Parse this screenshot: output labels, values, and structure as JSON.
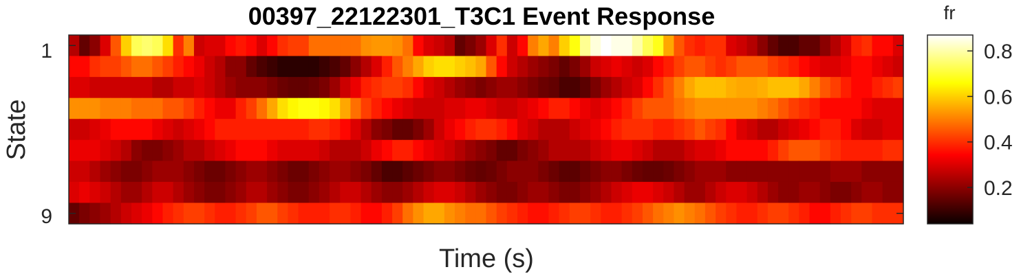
{
  "chart_data": {
    "type": "heatmap",
    "title": "00397_22122301_T3C1 Event Response",
    "xlabel": "Time (s)",
    "ylabel": "State",
    "y_tick_labels": [
      "1",
      "9"
    ],
    "colorbar": {
      "title": "fr",
      "colormap": "hot",
      "clim": [
        0.04,
        0.87
      ],
      "ticks": [
        0.2,
        0.4,
        0.6,
        0.8
      ],
      "tick_labels": [
        "0.2",
        "0.4",
        "0.6",
        "0.8"
      ]
    },
    "rows": 9,
    "cols": 80,
    "values": [
      [
        0.25,
        0.15,
        0.2,
        0.3,
        0.45,
        0.6,
        0.73,
        0.75,
        0.73,
        0.62,
        0.4,
        0.5,
        0.28,
        0.3,
        0.3,
        0.35,
        0.37,
        0.35,
        0.3,
        0.35,
        0.4,
        0.42,
        0.42,
        0.48,
        0.48,
        0.48,
        0.48,
        0.48,
        0.52,
        0.53,
        0.53,
        0.52,
        0.48,
        0.35,
        0.3,
        0.28,
        0.25,
        0.15,
        0.18,
        0.22,
        0.3,
        0.4,
        0.28,
        0.35,
        0.5,
        0.55,
        0.5,
        0.6,
        0.67,
        0.78,
        0.84,
        0.87,
        0.85,
        0.85,
        0.8,
        0.73,
        0.68,
        0.55,
        0.45,
        0.4,
        0.38,
        0.4,
        0.4,
        0.3,
        0.28,
        0.25,
        0.2,
        0.15,
        0.12,
        0.12,
        0.15,
        0.15,
        0.2,
        0.25,
        0.3,
        0.38,
        0.4,
        0.35,
        0.35,
        0.3
      ],
      [
        0.35,
        0.35,
        0.4,
        0.42,
        0.42,
        0.45,
        0.48,
        0.48,
        0.45,
        0.42,
        0.38,
        0.35,
        0.32,
        0.28,
        0.25,
        0.2,
        0.2,
        0.15,
        0.12,
        0.1,
        0.08,
        0.08,
        0.08,
        0.08,
        0.1,
        0.12,
        0.15,
        0.2,
        0.25,
        0.3,
        0.38,
        0.45,
        0.5,
        0.55,
        0.6,
        0.62,
        0.62,
        0.6,
        0.58,
        0.55,
        0.45,
        0.35,
        0.28,
        0.25,
        0.22,
        0.2,
        0.18,
        0.15,
        0.18,
        0.22,
        0.28,
        0.3,
        0.32,
        0.3,
        0.28,
        0.3,
        0.35,
        0.38,
        0.42,
        0.45,
        0.45,
        0.42,
        0.4,
        0.42,
        0.45,
        0.45,
        0.45,
        0.42,
        0.4,
        0.38,
        0.35,
        0.32,
        0.3,
        0.3,
        0.32,
        0.35,
        0.35,
        0.32,
        0.3,
        0.28
      ],
      [
        0.3,
        0.3,
        0.28,
        0.28,
        0.28,
        0.28,
        0.28,
        0.28,
        0.25,
        0.25,
        0.28,
        0.28,
        0.3,
        0.28,
        0.25,
        0.22,
        0.2,
        0.2,
        0.2,
        0.18,
        0.16,
        0.15,
        0.15,
        0.16,
        0.18,
        0.22,
        0.28,
        0.32,
        0.38,
        0.4,
        0.42,
        0.42,
        0.4,
        0.35,
        0.3,
        0.28,
        0.25,
        0.22,
        0.2,
        0.18,
        0.2,
        0.22,
        0.22,
        0.2,
        0.18,
        0.16,
        0.15,
        0.12,
        0.12,
        0.14,
        0.18,
        0.22,
        0.25,
        0.28,
        0.3,
        0.35,
        0.4,
        0.45,
        0.5,
        0.55,
        0.58,
        0.58,
        0.58,
        0.56,
        0.55,
        0.55,
        0.56,
        0.58,
        0.58,
        0.58,
        0.55,
        0.5,
        0.45,
        0.42,
        0.38,
        0.35,
        0.35,
        0.38,
        0.4,
        0.42
      ],
      [
        0.52,
        0.52,
        0.52,
        0.5,
        0.5,
        0.5,
        0.48,
        0.48,
        0.48,
        0.45,
        0.45,
        0.42,
        0.38,
        0.35,
        0.32,
        0.32,
        0.38,
        0.42,
        0.48,
        0.55,
        0.62,
        0.65,
        0.67,
        0.67,
        0.65,
        0.62,
        0.55,
        0.48,
        0.42,
        0.38,
        0.35,
        0.32,
        0.3,
        0.28,
        0.28,
        0.28,
        0.3,
        0.3,
        0.32,
        0.32,
        0.3,
        0.28,
        0.28,
        0.3,
        0.32,
        0.35,
        0.38,
        0.38,
        0.35,
        0.32,
        0.3,
        0.32,
        0.35,
        0.38,
        0.42,
        0.45,
        0.45,
        0.45,
        0.48,
        0.5,
        0.52,
        0.52,
        0.52,
        0.52,
        0.52,
        0.52,
        0.5,
        0.48,
        0.45,
        0.42,
        0.4,
        0.38,
        0.35,
        0.35,
        0.35,
        0.35,
        0.32,
        0.3,
        0.3,
        0.3
      ],
      [
        0.28,
        0.28,
        0.3,
        0.32,
        0.35,
        0.35,
        0.35,
        0.35,
        0.32,
        0.3,
        0.28,
        0.3,
        0.32,
        0.35,
        0.38,
        0.38,
        0.38,
        0.38,
        0.38,
        0.38,
        0.38,
        0.38,
        0.38,
        0.4,
        0.4,
        0.38,
        0.35,
        0.3,
        0.25,
        0.2,
        0.18,
        0.15,
        0.15,
        0.18,
        0.22,
        0.28,
        0.32,
        0.35,
        0.38,
        0.4,
        0.4,
        0.38,
        0.35,
        0.3,
        0.28,
        0.25,
        0.25,
        0.25,
        0.28,
        0.3,
        0.32,
        0.35,
        0.38,
        0.4,
        0.4,
        0.4,
        0.38,
        0.38,
        0.4,
        0.42,
        0.45,
        0.42,
        0.4,
        0.35,
        0.3,
        0.28,
        0.25,
        0.25,
        0.28,
        0.3,
        0.32,
        0.35,
        0.38,
        0.38,
        0.35,
        0.3,
        0.28,
        0.28,
        0.3,
        0.3
      ],
      [
        0.32,
        0.32,
        0.32,
        0.3,
        0.28,
        0.25,
        0.2,
        0.18,
        0.18,
        0.2,
        0.22,
        0.25,
        0.25,
        0.28,
        0.3,
        0.32,
        0.35,
        0.35,
        0.35,
        0.32,
        0.3,
        0.3,
        0.3,
        0.3,
        0.28,
        0.25,
        0.25,
        0.25,
        0.28,
        0.32,
        0.35,
        0.38,
        0.38,
        0.35,
        0.32,
        0.3,
        0.28,
        0.25,
        0.22,
        0.2,
        0.18,
        0.15,
        0.15,
        0.18,
        0.2,
        0.22,
        0.25,
        0.25,
        0.25,
        0.25,
        0.28,
        0.3,
        0.32,
        0.32,
        0.3,
        0.28,
        0.25,
        0.25,
        0.25,
        0.28,
        0.3,
        0.3,
        0.32,
        0.35,
        0.35,
        0.35,
        0.35,
        0.38,
        0.42,
        0.45,
        0.45,
        0.45,
        0.42,
        0.4,
        0.38,
        0.38,
        0.38,
        0.38,
        0.4,
        0.4
      ],
      [
        0.28,
        0.28,
        0.25,
        0.22,
        0.2,
        0.18,
        0.18,
        0.2,
        0.22,
        0.22,
        0.22,
        0.2,
        0.18,
        0.16,
        0.16,
        0.18,
        0.2,
        0.22,
        0.22,
        0.2,
        0.18,
        0.16,
        0.16,
        0.18,
        0.2,
        0.22,
        0.22,
        0.2,
        0.18,
        0.15,
        0.12,
        0.12,
        0.14,
        0.16,
        0.18,
        0.2,
        0.2,
        0.18,
        0.16,
        0.15,
        0.16,
        0.18,
        0.2,
        0.2,
        0.2,
        0.18,
        0.16,
        0.14,
        0.14,
        0.16,
        0.18,
        0.2,
        0.2,
        0.18,
        0.16,
        0.15,
        0.15,
        0.16,
        0.18,
        0.2,
        0.22,
        0.22,
        0.22,
        0.2,
        0.2,
        0.2,
        0.2,
        0.2,
        0.2,
        0.2,
        0.2,
        0.2,
        0.2,
        0.22,
        0.22,
        0.22,
        0.2,
        0.2,
        0.2,
        0.2
      ],
      [
        0.3,
        0.32,
        0.3,
        0.28,
        0.25,
        0.22,
        0.22,
        0.25,
        0.28,
        0.28,
        0.25,
        0.22,
        0.2,
        0.18,
        0.18,
        0.2,
        0.22,
        0.25,
        0.25,
        0.22,
        0.2,
        0.18,
        0.18,
        0.2,
        0.22,
        0.25,
        0.28,
        0.28,
        0.25,
        0.22,
        0.2,
        0.2,
        0.22,
        0.25,
        0.28,
        0.3,
        0.3,
        0.28,
        0.25,
        0.22,
        0.2,
        0.18,
        0.18,
        0.2,
        0.22,
        0.22,
        0.2,
        0.18,
        0.18,
        0.2,
        0.22,
        0.25,
        0.28,
        0.3,
        0.32,
        0.32,
        0.3,
        0.28,
        0.25,
        0.22,
        0.22,
        0.25,
        0.28,
        0.3,
        0.3,
        0.28,
        0.25,
        0.22,
        0.2,
        0.2,
        0.22,
        0.22,
        0.2,
        0.18,
        0.18,
        0.2,
        0.22,
        0.22,
        0.2,
        0.2
      ],
      [
        0.15,
        0.18,
        0.2,
        0.22,
        0.25,
        0.28,
        0.3,
        0.32,
        0.35,
        0.38,
        0.4,
        0.42,
        0.42,
        0.4,
        0.38,
        0.38,
        0.4,
        0.42,
        0.45,
        0.45,
        0.42,
        0.4,
        0.38,
        0.38,
        0.38,
        0.4,
        0.4,
        0.38,
        0.35,
        0.35,
        0.38,
        0.42,
        0.48,
        0.52,
        0.55,
        0.55,
        0.52,
        0.5,
        0.48,
        0.48,
        0.45,
        0.42,
        0.4,
        0.38,
        0.36,
        0.36,
        0.38,
        0.4,
        0.42,
        0.42,
        0.4,
        0.38,
        0.38,
        0.4,
        0.42,
        0.45,
        0.48,
        0.5,
        0.52,
        0.5,
        0.48,
        0.45,
        0.42,
        0.4,
        0.38,
        0.38,
        0.4,
        0.42,
        0.42,
        0.4,
        0.38,
        0.35,
        0.35,
        0.38,
        0.4,
        0.42,
        0.42,
        0.4,
        0.4,
        0.4
      ]
    ]
  }
}
